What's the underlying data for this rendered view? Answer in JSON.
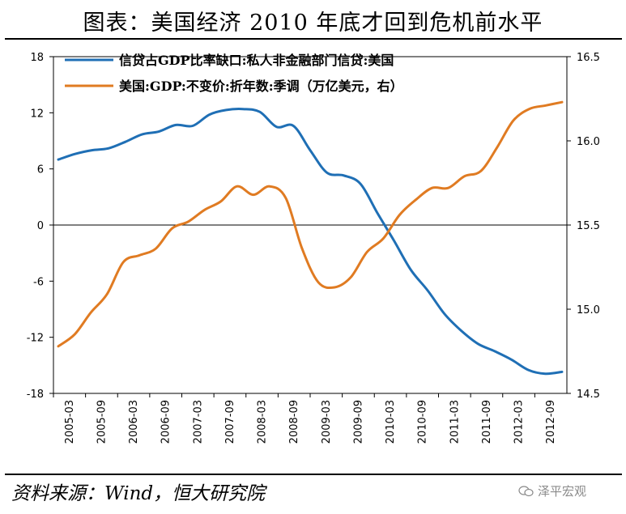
{
  "title": "图表：美国经济 2010 年底才回到危机前水平",
  "source": "资料来源：Wind，恒大研究院",
  "watermark": "泽平宏观",
  "colors": {
    "series1": "#1F6FB5",
    "series2": "#E07B22",
    "axis": "#000000"
  },
  "chart_data": {
    "type": "line",
    "x_ticks": [
      "2005-03",
      "2005-09",
      "2006-03",
      "2006-09",
      "2007-03",
      "2007-09",
      "2008-03",
      "2008-09",
      "2009-03",
      "2009-09",
      "2010-03",
      "2010-09",
      "2011-03",
      "2011-09",
      "2012-03",
      "2012-09"
    ],
    "y_left": {
      "min": -18,
      "max": 18,
      "ticks": [
        -18,
        -12,
        -6,
        0,
        6,
        12,
        18
      ]
    },
    "y_right": {
      "min": 14.5,
      "max": 16.5,
      "ticks": [
        "14.5",
        "15.0",
        "15.5",
        "16.0",
        "16.5"
      ]
    },
    "legend_position": "top",
    "series": [
      {
        "name": "信贷占GDP比率缺口:私人非金融部门信贷:美国",
        "axis": "left",
        "color": "#1F6FB5",
        "values": [
          7.0,
          7.6,
          8.0,
          8.2,
          8.9,
          9.7,
          10.0,
          10.7,
          10.6,
          11.8,
          12.3,
          12.4,
          12.1,
          10.5,
          10.6,
          8.0,
          5.6,
          5.3,
          4.4,
          1.3,
          -1.7,
          -4.8,
          -7.0,
          -9.5,
          -11.3,
          -12.7,
          -13.5,
          -14.4,
          -15.5,
          -15.9,
          -15.7
        ]
      },
      {
        "name": "美国:GDP:不变价:折年数:季调（万亿美元，右）",
        "axis": "right",
        "color": "#E07B22",
        "values": [
          14.78,
          14.85,
          14.98,
          15.09,
          15.28,
          15.32,
          15.36,
          15.48,
          15.52,
          15.59,
          15.64,
          15.73,
          15.68,
          15.73,
          15.66,
          15.36,
          15.16,
          15.13,
          15.19,
          15.34,
          15.42,
          15.56,
          15.65,
          15.72,
          15.72,
          15.79,
          15.82,
          15.96,
          16.12,
          16.19,
          16.21,
          16.23
        ]
      }
    ]
  }
}
